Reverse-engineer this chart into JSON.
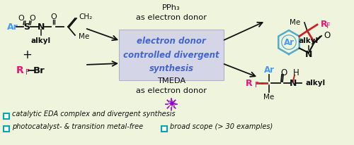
{
  "background_color": "#eef5dc",
  "center_box_color": "#d0d0e8",
  "center_box_text": "electron donor\ncontrolled divergent\nsynthesis",
  "center_box_text_color": "#4466cc",
  "pph3_text": "PPh₃\nas electron donor",
  "tmeda_text": "TMEDA\nas electron donor",
  "arrow_color": "#111111",
  "Ar_color": "#4499ff",
  "RF_color": "#ee1177",
  "bond_color": "#111111",
  "red_bond_color": "#cc2222",
  "sun_color": "#9900cc",
  "teal_color": "#00aaaa",
  "legend1": "catalytic EDA complex and divergent synthesis",
  "legend2": "photocatalyst- & transition metal-free",
  "legend3": "broad scope (> 30 examples)"
}
